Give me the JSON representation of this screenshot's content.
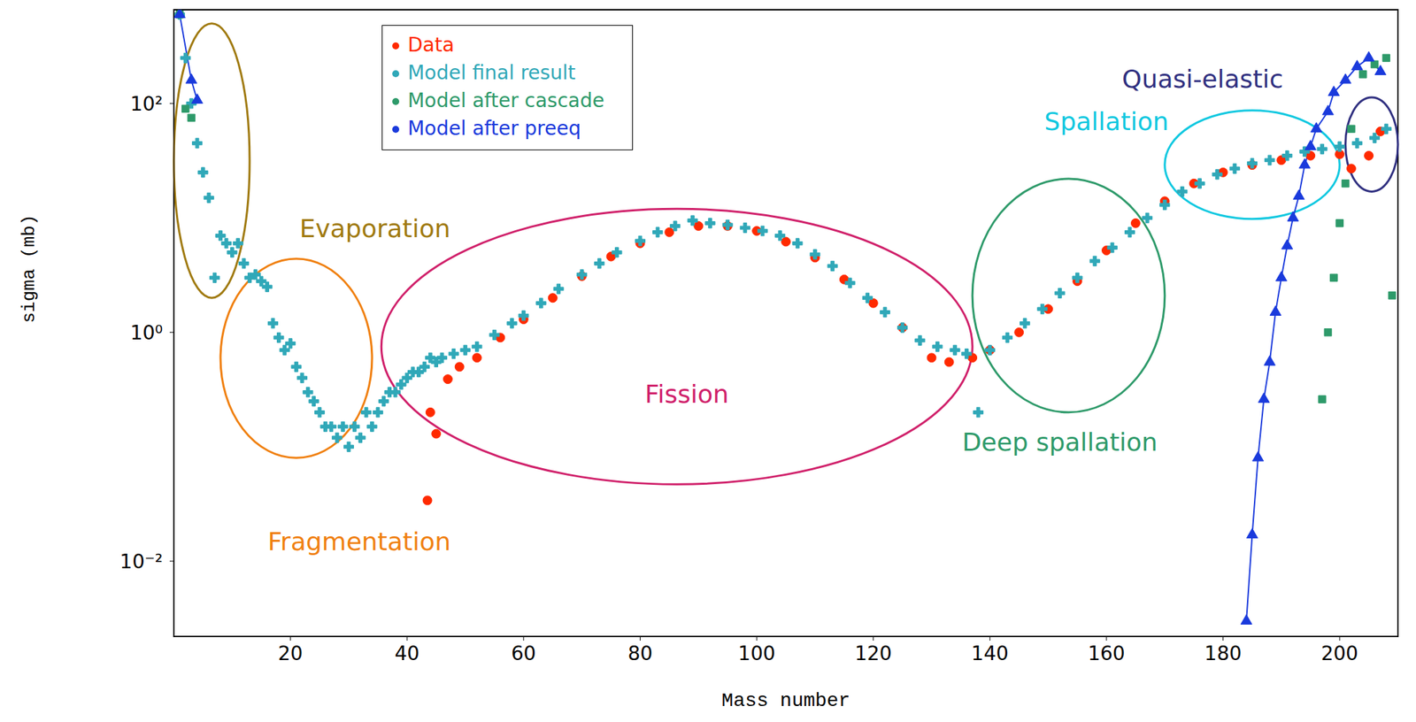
{
  "chart_data": {
    "type": "scatter",
    "x_label": "Mass number",
    "y_label": "sigma (mb)",
    "log": "y",
    "grid": false,
    "legend": "top",
    "xlim": [
      0,
      210
    ],
    "xticks": [
      20,
      40,
      60,
      80,
      100,
      120,
      140,
      160,
      180,
      200
    ],
    "ylim": [
      0.0022,
      660
    ],
    "yticks": [
      {
        "value": 0.01,
        "label": "10⁻²"
      },
      {
        "value": 1,
        "label": "10⁰"
      },
      {
        "value": 100,
        "label": "10²"
      }
    ],
    "series": [
      {
        "name": "Data",
        "color": "#ff2a00",
        "marker": "circle",
        "line_style": "none",
        "x": [
          43.5,
          44,
          45,
          47,
          49,
          52,
          56,
          60,
          65,
          70,
          75,
          80,
          85,
          90,
          95,
          100,
          105,
          110,
          115,
          120,
          125,
          130,
          133,
          137,
          140,
          145,
          150,
          155,
          160,
          165,
          170,
          175,
          180,
          185,
          190,
          195,
          200,
          202,
          205,
          207
        ],
        "values": [
          0.034,
          0.2,
          0.13,
          0.39,
          0.5,
          0.6,
          0.9,
          1.3,
          2,
          3.1,
          4.6,
          6,
          7.5,
          8.5,
          8.5,
          7.7,
          6.2,
          4.5,
          2.9,
          1.8,
          1.1,
          0.6,
          0.55,
          0.6,
          0.7,
          1,
          1.6,
          2.8,
          5.2,
          9,
          14,
          20,
          25,
          29,
          32,
          35,
          36,
          27,
          35,
          57
        ]
      },
      {
        "name": "Model final result",
        "color": "#30a8b8",
        "marker": "cross",
        "line_style": "none",
        "x": [
          1,
          2,
          3,
          4,
          5,
          6,
          7,
          8,
          9,
          10,
          11,
          12,
          13,
          14,
          15,
          16,
          17,
          18,
          19,
          20,
          21,
          22,
          23,
          24,
          25,
          26,
          27,
          28,
          29,
          30,
          31,
          32,
          33,
          34,
          35,
          36,
          37,
          38,
          39,
          40,
          41,
          42,
          43,
          44,
          45,
          46,
          48,
          50,
          52,
          55,
          58,
          60,
          63,
          66,
          70,
          73,
          76,
          80,
          83,
          86,
          89,
          92,
          95,
          98,
          101,
          104,
          107,
          110,
          113,
          116,
          119,
          122,
          125,
          128,
          131,
          134,
          136,
          138,
          140,
          143,
          146,
          149,
          152,
          155,
          158,
          161,
          164,
          167,
          170,
          173,
          176,
          179,
          182,
          185,
          188,
          191,
          194,
          197,
          200,
          203,
          206,
          208
        ],
        "values": [
          600,
          250,
          100,
          45,
          25,
          15,
          3,
          7,
          6,
          5,
          6,
          4,
          3,
          3.2,
          2.8,
          2.5,
          1.2,
          0.9,
          0.7,
          0.8,
          0.5,
          0.4,
          0.3,
          0.25,
          0.2,
          0.15,
          0.15,
          0.12,
          0.15,
          0.1,
          0.15,
          0.12,
          0.2,
          0.15,
          0.2,
          0.25,
          0.3,
          0.3,
          0.35,
          0.4,
          0.45,
          0.45,
          0.5,
          0.6,
          0.55,
          0.6,
          0.65,
          0.7,
          0.75,
          0.95,
          1.2,
          1.4,
          1.8,
          2.4,
          3.2,
          4,
          5,
          6.3,
          7.5,
          8.5,
          9.5,
          9,
          8.7,
          8.2,
          7.7,
          7,
          6,
          4.8,
          3.8,
          2.7,
          2,
          1.5,
          1.1,
          0.85,
          0.75,
          0.7,
          0.65,
          0.2,
          0.7,
          0.9,
          1.2,
          1.6,
          2.2,
          3,
          4.2,
          5.5,
          7.5,
          10,
          13,
          17,
          20,
          24,
          27,
          30,
          32,
          35,
          38,
          40,
          42,
          45,
          50,
          60
        ]
      },
      {
        "name": "Model after cascade",
        "color": "#2e9a6a",
        "marker": "square",
        "line_style": "none",
        "x": [
          1,
          2,
          3,
          197,
          198,
          199,
          200,
          201,
          202,
          204,
          206,
          208,
          209
        ],
        "values": [
          600,
          90,
          75,
          0.26,
          1,
          3,
          9,
          20,
          60,
          180,
          220,
          250,
          2.1
        ]
      },
      {
        "name": "Model after preeq",
        "color": "#1a3adc",
        "marker": "triangle",
        "line_style": "solid",
        "x": [
          1,
          3,
          4,
          5,
          184,
          185,
          186,
          187,
          188,
          189,
          190,
          191,
          192,
          193,
          194,
          195,
          196,
          198,
          199,
          201,
          203,
          205,
          207
        ],
        "values": [
          600,
          160,
          107,
          null,
          0.003,
          0.017,
          0.08,
          0.26,
          0.55,
          1.5,
          3,
          5.7,
          10,
          15.5,
          29,
          42,
          60,
          85,
          125,
          160,
          210,
          250,
          190
        ]
      }
    ],
    "annotations": [
      {
        "text": "Evaporation",
        "color": "#a07a10",
        "x": 34.5,
        "y": 8.1,
        "region": {
          "x": [
            0,
            13
          ],
          "y": [
            2,
            500
          ]
        }
      },
      {
        "text": "Fragmentation",
        "color": "#f08010",
        "x": 31.8,
        "y": 0.015,
        "region": {
          "x": [
            8,
            34
          ],
          "y": [
            0.08,
            4.4
          ]
        }
      },
      {
        "text": "Fission",
        "color": "#d0206a",
        "x": 88,
        "y": 0.29,
        "region": {
          "x": [
            35.6,
            137
          ],
          "y": [
            0.047,
            12
          ]
        }
      },
      {
        "text": "Deep spallation",
        "color": "#2e9a6a",
        "x": 152,
        "y": 0.11,
        "region": {
          "x": [
            137,
            170
          ],
          "y": [
            0.2,
            22
          ]
        }
      },
      {
        "text": "Spallation",
        "color": "#10c8e0",
        "x": 160,
        "y": 70,
        "region": {
          "x": [
            170,
            200
          ],
          "y": [
            9.8,
            87
          ]
        }
      },
      {
        "text": "Quasi-elastic",
        "color": "#303080",
        "x": 176.5,
        "y": 164,
        "region": {
          "x": [
            201,
            210
          ],
          "y": [
            17,
            113
          ]
        }
      }
    ]
  }
}
